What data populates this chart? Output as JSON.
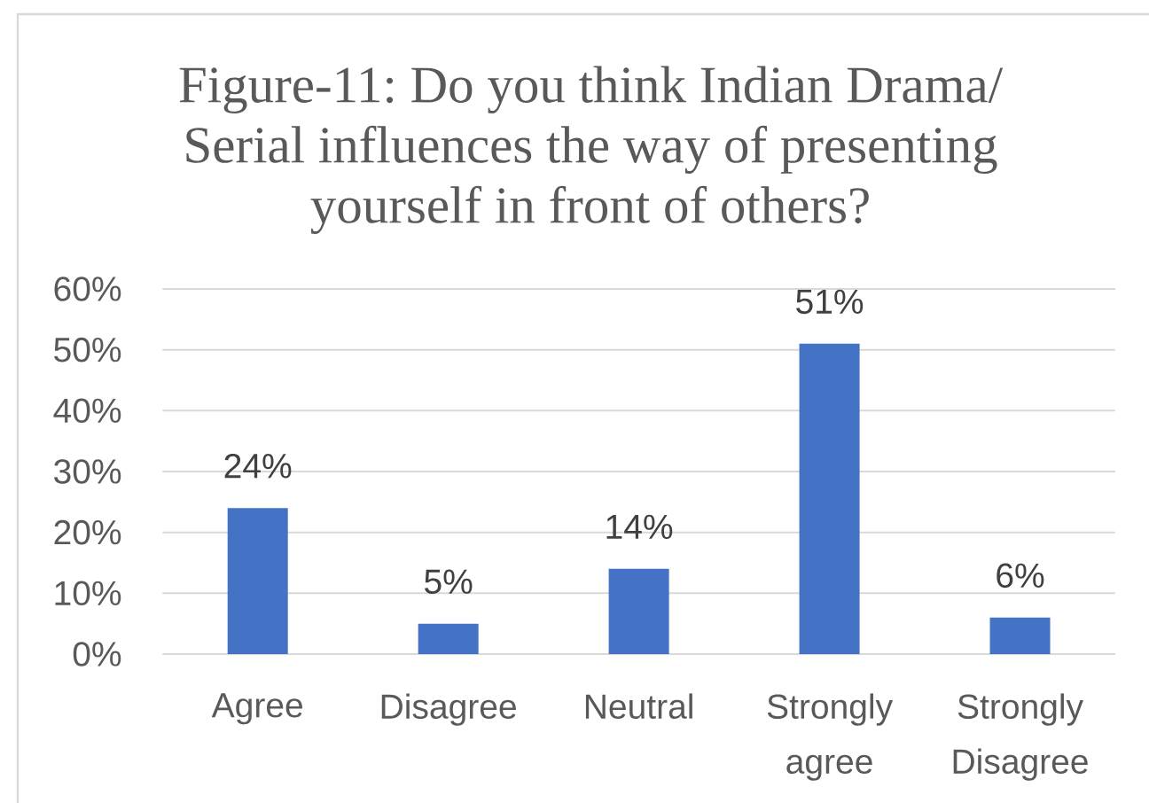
{
  "chart_data": {
    "type": "bar",
    "title": "Figure-11: Do you think Indian Drama/ Serial influences the way of presenting yourself in front of others?",
    "categories": [
      "Agree",
      "Disagree",
      "Neutral",
      "Strongly agree",
      "Strongly Disagree"
    ],
    "values": [
      24,
      5,
      14,
      51,
      6
    ],
    "value_labels": [
      "24%",
      "5%",
      "14%",
      "51%",
      "6%"
    ],
    "color": "#4472c4",
    "ylim": [
      0,
      60
    ],
    "yticks": [
      {
        "value": 0,
        "label": "0%"
      },
      {
        "value": 10,
        "label": "10%"
      },
      {
        "value": 20,
        "label": "20%"
      },
      {
        "value": 30,
        "label": "30%"
      },
      {
        "value": 40,
        "label": "40%"
      },
      {
        "value": 50,
        "label": "50%"
      },
      {
        "value": 60,
        "label": "60%"
      }
    ],
    "grid": "y"
  }
}
